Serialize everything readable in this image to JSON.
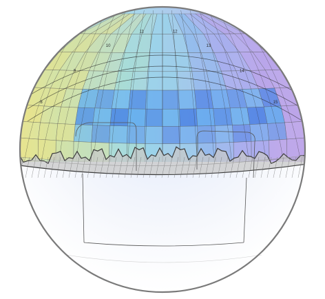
{
  "scene": {
    "type": "sky-dome-sphere",
    "palette": {
      "outline": "#7a7a7a",
      "grid": "#4a4a4a",
      "mountain_fill": "#cfcfcf",
      "mountain_edge": "#3b3b3b",
      "bottom_hemisphere": "#eef2fb"
    },
    "color_ramp": [
      "#f0e27a",
      "#d8e3a0",
      "#a9dfc8",
      "#8fd5e9",
      "#7fb8ec",
      "#9ca5ee",
      "#b59be8"
    ],
    "hour_labels": [
      "8",
      "9",
      "10",
      "11",
      "12",
      "13",
      "14",
      "15"
    ],
    "strong_band_colors": [
      "#4f8fe6",
      "#66b2ef",
      "#3f7de3",
      "#5aa7ef"
    ]
  }
}
